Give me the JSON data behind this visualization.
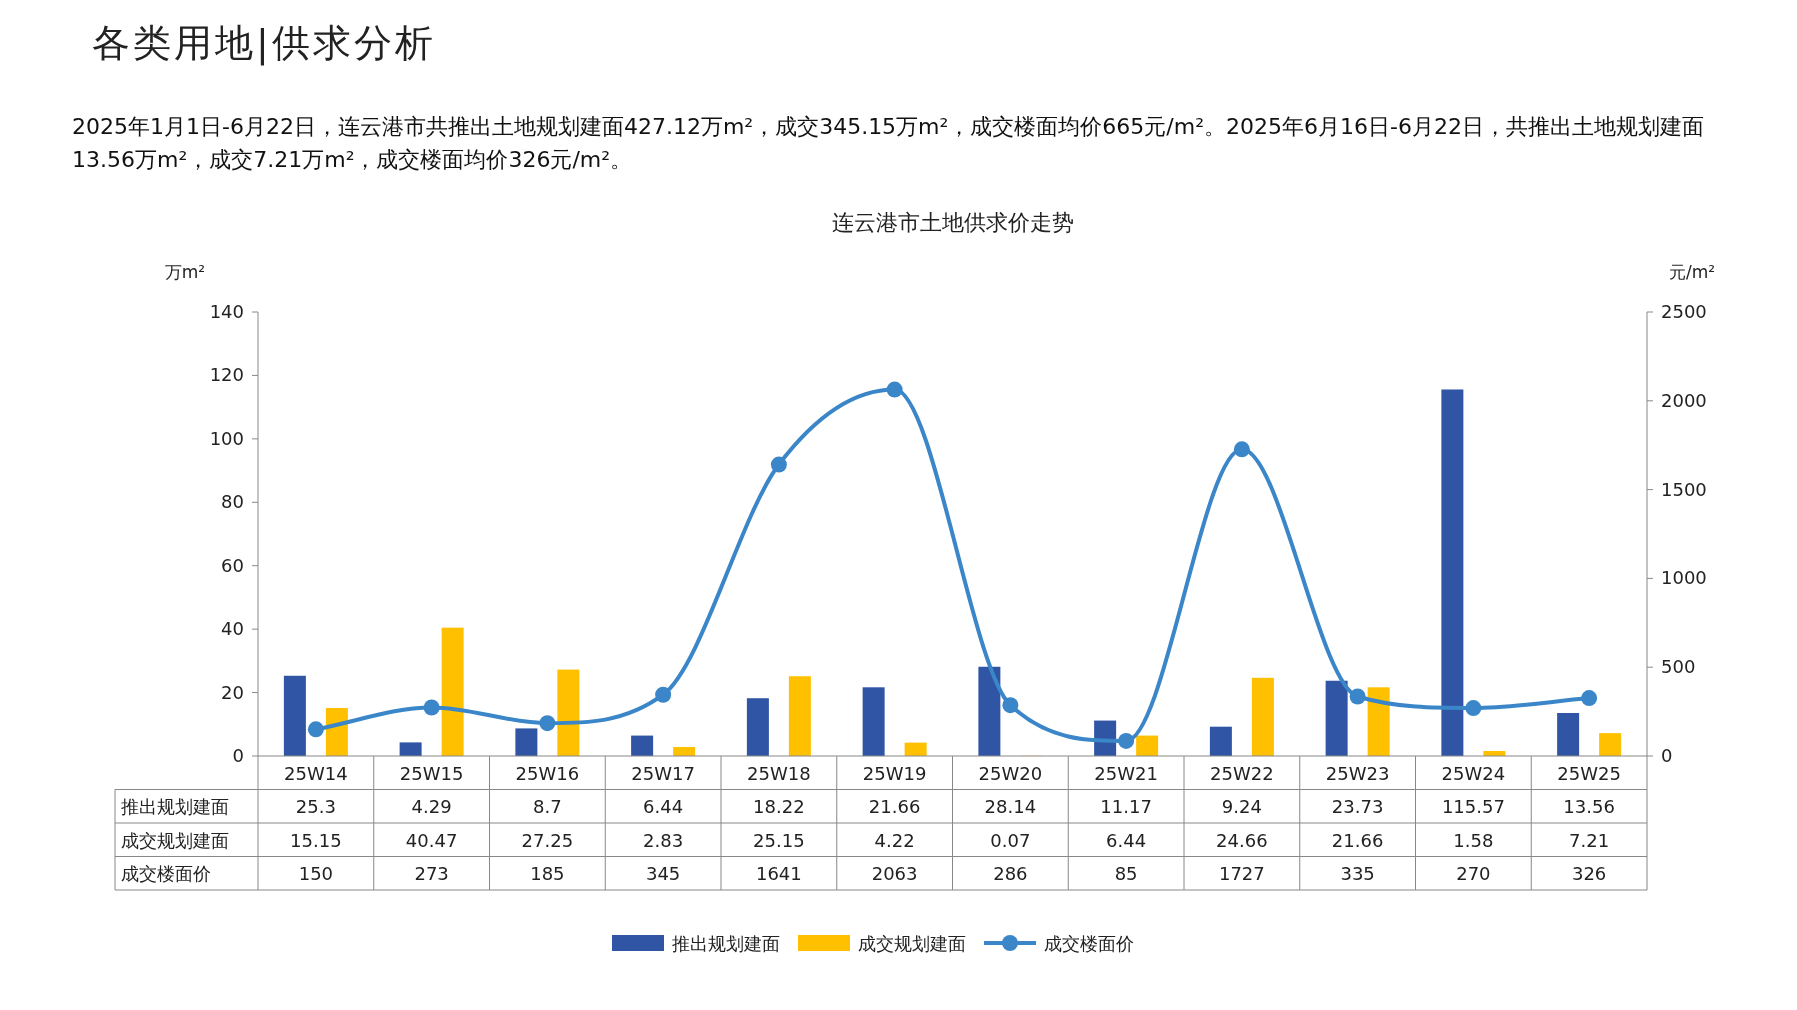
{
  "chart_data": {
    "type": "bar",
    "title": "连云港市土地供求价走势",
    "annotations": [
      "各类用地|供求分析",
      "2025年1月1日-6月22日，连云港市共推出土地规划建面427.12万m²，成交345.15万m²，成交楼面均价665元/m²。2025年6月16日-6月22日，共推出土地规划建面13.56万m²，成交7.21万m²，成交楼面均价326元/m²。"
    ],
    "ylabel": "万m²",
    "y2label": "元/m²",
    "categories": [
      "25W14",
      "25W15",
      "25W16",
      "25W17",
      "25W18",
      "25W19",
      "25W20",
      "25W21",
      "25W22",
      "25W23",
      "25W24",
      "25W25"
    ],
    "series": [
      {
        "name": "推出规划建面",
        "color": "#2f55a4",
        "values": [
          25.3,
          4.29,
          8.7,
          6.44,
          18.22,
          21.66,
          28.14,
          11.17,
          9.24,
          23.73,
          115.57,
          13.56
        ]
      },
      {
        "name": "成交规划建面",
        "color": "#ffc000",
        "values": [
          15.15,
          40.47,
          27.25,
          2.83,
          25.15,
          4.22,
          0.07,
          6.44,
          24.66,
          21.66,
          1.58,
          7.21
        ]
      },
      {
        "name": "成交楼面价",
        "type": "line",
        "axis": "y2",
        "color": "#3a86c8",
        "marker": "circle",
        "line_style": "solid",
        "values": [
          150,
          273,
          185,
          345,
          1641,
          2063,
          286,
          85,
          1727,
          335,
          270,
          326
        ]
      }
    ],
    "ylim": [
      0,
      140
    ],
    "yticks": [
      0,
      20,
      40,
      60,
      80,
      100,
      120,
      140
    ],
    "y2lim": [
      0,
      2500
    ],
    "y2ticks": [
      0,
      500,
      1000,
      1500,
      2000,
      2500
    ],
    "data_labels": true,
    "legend": "bottom",
    "grid": false
  }
}
